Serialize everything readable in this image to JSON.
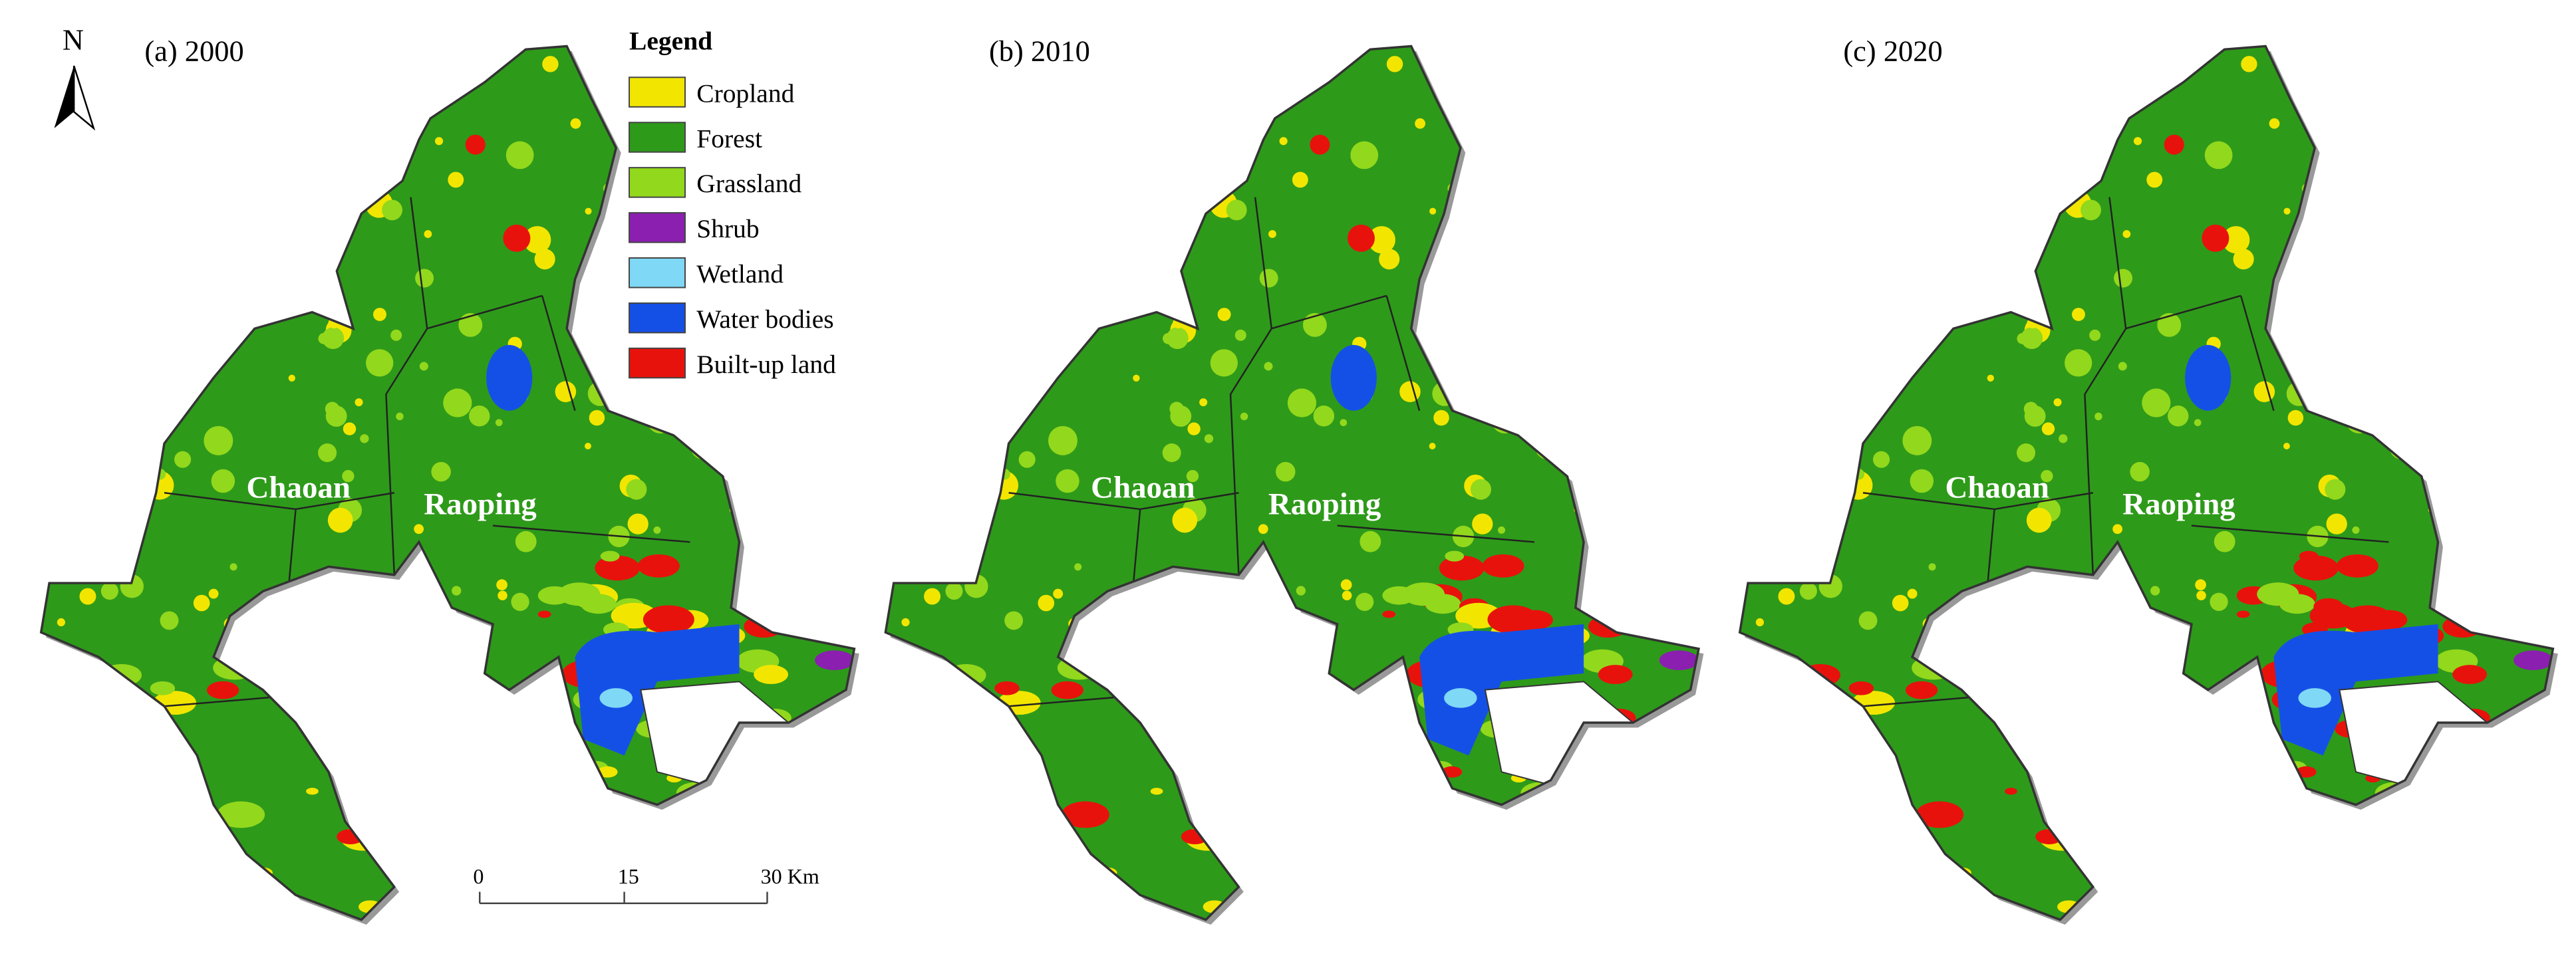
{
  "north": "N",
  "panels": [
    {
      "title": "(a) 2000"
    },
    {
      "title": "(b) 2010"
    },
    {
      "title": "(c) 2020"
    }
  ],
  "places": [
    "Chaoan",
    "Raoping"
  ],
  "legend": {
    "title": "Legend",
    "items": [
      {
        "name": "Cropland",
        "color": "#f2e600"
      },
      {
        "name": "Forest",
        "color": "#2e9a1a"
      },
      {
        "name": "Grassland",
        "color": "#92d81c"
      },
      {
        "name": "Shrub",
        "color": "#8a1fb0"
      },
      {
        "name": "Wetland",
        "color": "#7fd8f5"
      },
      {
        "name": "Water bodies",
        "color": "#1550e6"
      },
      {
        "name": "Built-up land",
        "color": "#e8120c"
      }
    ]
  },
  "scale_bar": [
    "0",
    "15",
    "30 Km"
  ]
}
